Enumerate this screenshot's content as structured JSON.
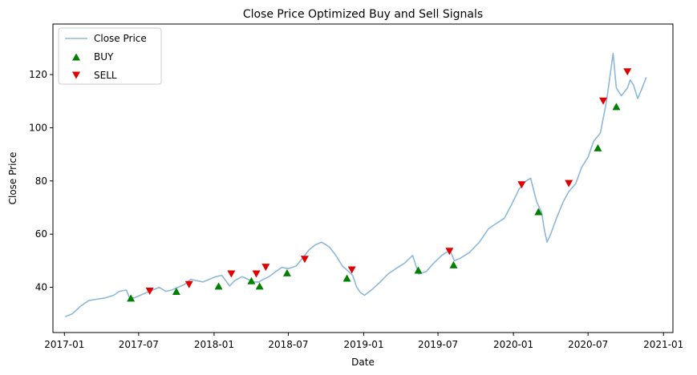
{
  "chart_data": {
    "type": "line",
    "title": "Close Price Optimized Buy and Sell Signals",
    "xlabel": "Date",
    "ylabel": "Close Price",
    "xlim": [
      "2016-12-04",
      "2021-01-24"
    ],
    "ylim": [
      23,
      139
    ],
    "x_ticks": [
      "2017-01",
      "2017-07",
      "2018-01",
      "2018-07",
      "2019-01",
      "2019-07",
      "2020-01",
      "2020-07",
      "2021-01"
    ],
    "y_ticks": [
      40,
      60,
      80,
      100,
      120
    ],
    "grid": false,
    "legend_position": "top-left",
    "series": [
      {
        "name": "Close Price",
        "color": "#8cb8da",
        "x": [
          "2017-01-03",
          "2017-01-20",
          "2017-02-10",
          "2017-03-01",
          "2017-03-20",
          "2017-04-10",
          "2017-05-01",
          "2017-05-15",
          "2017-06-01",
          "2017-06-09",
          "2017-06-20",
          "2017-07-05",
          "2017-07-20",
          "2017-08-05",
          "2017-08-20",
          "2017-09-05",
          "2017-09-20",
          "2017-10-05",
          "2017-10-20",
          "2017-11-05",
          "2017-11-20",
          "2017-12-05",
          "2017-12-20",
          "2018-01-05",
          "2018-01-20",
          "2018-02-08",
          "2018-02-20",
          "2018-03-10",
          "2018-03-25",
          "2018-04-05",
          "2018-04-20",
          "2018-05-01",
          "2018-05-15",
          "2018-06-01",
          "2018-06-15",
          "2018-07-01",
          "2018-07-20",
          "2018-08-05",
          "2018-08-20",
          "2018-09-05",
          "2018-09-20",
          "2018-10-01",
          "2018-10-10",
          "2018-10-25",
          "2018-11-10",
          "2018-11-25",
          "2018-12-05",
          "2018-12-15",
          "2018-12-24",
          "2019-01-03",
          "2019-01-20",
          "2019-02-10",
          "2019-03-01",
          "2019-03-20",
          "2019-04-10",
          "2019-04-30",
          "2019-05-15",
          "2019-06-03",
          "2019-06-20",
          "2019-07-10",
          "2019-07-30",
          "2019-08-10",
          "2019-08-25",
          "2019-09-15",
          "2019-10-10",
          "2019-11-01",
          "2019-11-20",
          "2019-12-10",
          "2019-12-27",
          "2020-01-15",
          "2020-02-01",
          "2020-02-12",
          "2020-02-27",
          "2020-03-10",
          "2020-03-16",
          "2020-03-23",
          "2020-04-01",
          "2020-04-15",
          "2020-05-01",
          "2020-05-15",
          "2020-06-01",
          "2020-06-15",
          "2020-07-01",
          "2020-07-15",
          "2020-07-31",
          "2020-08-15",
          "2020-08-31",
          "2020-09-08",
          "2020-09-20",
          "2020-10-05",
          "2020-10-12",
          "2020-10-20",
          "2020-10-30",
          "2020-11-10",
          "2020-11-20"
        ],
        "values": [
          29,
          30,
          33,
          35,
          35.5,
          36,
          37,
          38.5,
          39,
          36,
          36,
          37,
          38,
          39,
          40,
          38.5,
          39,
          40,
          41,
          43,
          42.5,
          42,
          43,
          44,
          44.5,
          40.5,
          42.5,
          44,
          43,
          42,
          42,
          43,
          44,
          46,
          47.5,
          47,
          48,
          51,
          54,
          56,
          57,
          56,
          55,
          52,
          48,
          46,
          44.5,
          40,
          38,
          37,
          39,
          42,
          45,
          47,
          49,
          52,
          45,
          46,
          49,
          52,
          54,
          50,
          51,
          53,
          57,
          62,
          64,
          66,
          71,
          77,
          80,
          81,
          72,
          68,
          62,
          57,
          60,
          66,
          72,
          76,
          79,
          85,
          89,
          95,
          98,
          110,
          128,
          115,
          112,
          115,
          118,
          116,
          111,
          115,
          119
        ]
      }
    ],
    "signals": [
      {
        "name": "BUY",
        "color": "#008000",
        "marker": "triangle-up",
        "points": [
          {
            "x": "2017-06-12",
            "y": 36
          },
          {
            "x": "2017-10-01",
            "y": 38.5
          },
          {
            "x": "2018-01-12",
            "y": 40.5
          },
          {
            "x": "2018-04-02",
            "y": 42.5
          },
          {
            "x": "2018-04-22",
            "y": 40.5
          },
          {
            "x": "2018-06-28",
            "y": 45.5
          },
          {
            "x": "2018-11-21",
            "y": 43.5
          },
          {
            "x": "2019-05-14",
            "y": 46.5
          },
          {
            "x": "2019-08-08",
            "y": 48.5
          },
          {
            "x": "2020-03-02",
            "y": 68.5
          },
          {
            "x": "2020-07-25",
            "y": 92.5
          },
          {
            "x": "2020-09-08",
            "y": 108
          }
        ]
      },
      {
        "name": "SELL",
        "color": "#e00000",
        "marker": "triangle-down",
        "points": [
          {
            "x": "2017-07-28",
            "y": 38.5
          },
          {
            "x": "2017-11-01",
            "y": 41
          },
          {
            "x": "2018-02-12",
            "y": 45
          },
          {
            "x": "2018-04-14",
            "y": 45
          },
          {
            "x": "2018-05-07",
            "y": 47.5
          },
          {
            "x": "2018-08-10",
            "y": 50.5
          },
          {
            "x": "2018-12-03",
            "y": 46.5
          },
          {
            "x": "2019-07-29",
            "y": 53.5
          },
          {
            "x": "2020-01-21",
            "y": 78.5
          },
          {
            "x": "2020-05-15",
            "y": 79
          },
          {
            "x": "2020-08-07",
            "y": 110
          },
          {
            "x": "2020-10-05",
            "y": 121
          }
        ]
      }
    ]
  }
}
